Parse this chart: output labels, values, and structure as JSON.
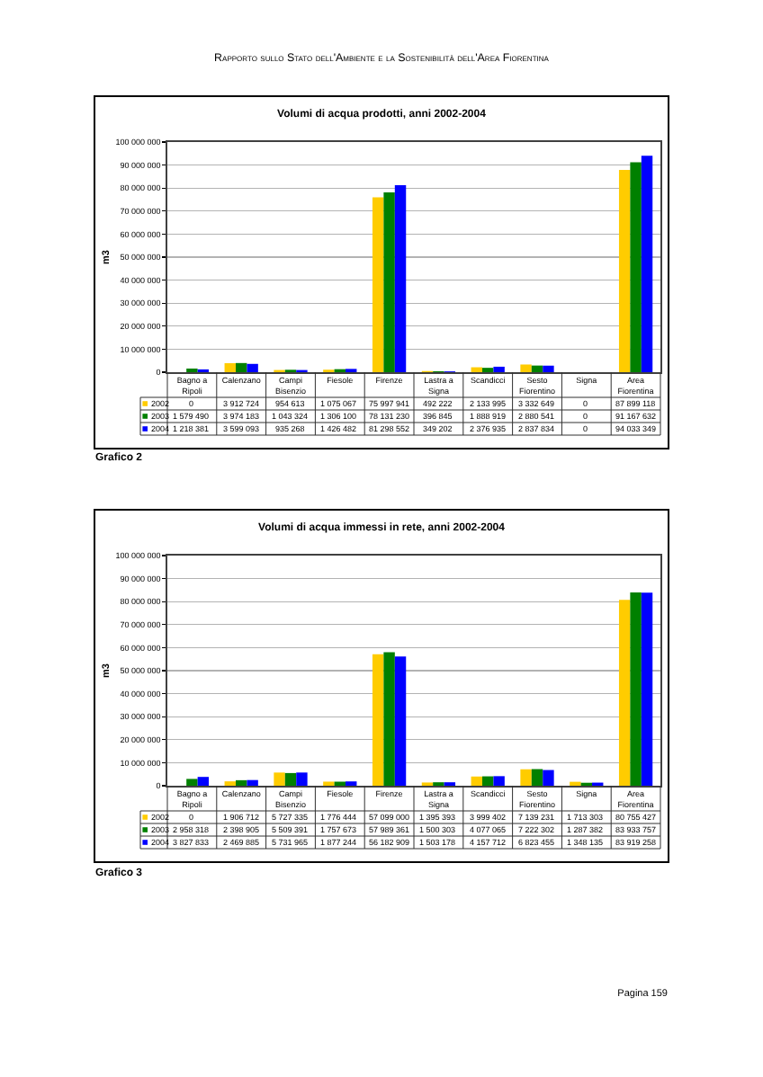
{
  "chart_data": [
    {
      "type": "bar",
      "title": "Volumi di acqua prodotti, anni 2002-2004",
      "ylabel": "m3",
      "annotations": [
        "Rapporto sullo Stato dell'Ambiente e la Sostenibilità dell'Area Fiorentina",
        "Grafico 2"
      ],
      "categories": [
        "Bagno a Ripoli",
        "Calenzano",
        "Campi Bisenzio",
        "Fiesole",
        "Firenze",
        "Lastra a Signa",
        "Scandicci",
        "Sesto Fiorentino",
        "Signa",
        "Area Fiorentina"
      ],
      "series": [
        {
          "name": "2002",
          "color": "#ffcc00",
          "values": [
            0,
            3912724,
            954613,
            1075067,
            75997941,
            492222,
            2133995,
            3332649,
            0,
            87899118
          ],
          "value_labels": [
            "0",
            "3 912 724",
            "954 613",
            "1 075 067",
            "75 997 941",
            "492 222",
            "2 133 995",
            "3 332 649",
            "0",
            "87 899 118"
          ]
        },
        {
          "name": "2003",
          "color": "#008000",
          "values": [
            1579490,
            3974183,
            1043324,
            1306100,
            78131230,
            396845,
            1888919,
            2880541,
            0,
            91167632
          ],
          "value_labels": [
            "1 579 490",
            "3 974 183",
            "1 043 324",
            "1 306 100",
            "78 131 230",
            "396 845",
            "1 888 919",
            "2 880 541",
            "0",
            "91 167 632"
          ]
        },
        {
          "name": "2004",
          "color": "#0000ff",
          "values": [
            1218381,
            3599093,
            935268,
            1426482,
            81298552,
            349202,
            2376935,
            2837834,
            0,
            94033349
          ],
          "value_labels": [
            "1 218 381",
            "3 599 093",
            "935 268",
            "1 426 482",
            "81 298 552",
            "349 202",
            "2 376 935",
            "2 837 834",
            "0",
            "94 033 349"
          ]
        }
      ],
      "ylim": [
        0,
        100000000
      ],
      "yticks": [
        0,
        {
          "value": 10000000,
          "label": "10 000 000"
        },
        {
          "value": 20000000,
          "label": "20 000 000"
        },
        {
          "value": 30000000,
          "label": "30 000 000"
        },
        {
          "value": 40000000,
          "label": "40 000 000"
        },
        {
          "value": 50000000,
          "label": "50 000 000"
        },
        {
          "value": 60000000,
          "label": "60 000 000"
        },
        {
          "value": 70000000,
          "label": "70 000 000"
        },
        {
          "value": 80000000,
          "label": "80 000 000"
        },
        {
          "value": 90000000,
          "label": "90 000 000"
        },
        {
          "value": 100000000,
          "label": "100 000 000"
        }
      ],
      "grid": "y",
      "legend": "bottom left"
    },
    {
      "type": "bar",
      "title": "Volumi di acqua immessi in rete, anni 2002-2004",
      "ylabel": "m3",
      "annotations": [
        "Grafico 3",
        "Pagina 159"
      ],
      "categories": [
        "Bagno a Ripoli",
        "Calenzano",
        "Campi Bisenzio",
        "Fiesole",
        "Firenze",
        "Lastra a Signa",
        "Scandicci",
        "Sesto Fiorentino",
        "Signa",
        "Area Fiorentina"
      ],
      "series": [
        {
          "name": "2002",
          "color": "#ffcc00",
          "values": [
            0,
            1906712,
            5727335,
            1776444,
            57099000,
            1395393,
            3999402,
            7139231,
            1713303,
            80755427
          ],
          "value_labels": [
            "0",
            "1 906 712",
            "5 727 335",
            "1 776 444",
            "57 099 000",
            "1 395 393",
            "3 999 402",
            "7 139 231",
            "1 713 303",
            "80 755 427"
          ]
        },
        {
          "name": "2003",
          "color": "#008000",
          "values": [
            2958318,
            2398905,
            5509391,
            1757673,
            57989361,
            1500303,
            4077065,
            7222302,
            1287382,
            83933757
          ],
          "value_labels": [
            "2 958 318",
            "2 398 905",
            "5 509 391",
            "1 757 673",
            "57 989 361",
            "1 500 303",
            "4 077 065",
            "7 222 302",
            "1 287 382",
            "83 933 757"
          ]
        },
        {
          "name": "2004",
          "color": "#0000ff",
          "values": [
            3827833,
            2469885,
            5731965,
            1877244,
            56182909,
            1503178,
            4157712,
            6823455,
            1348135,
            83919258
          ],
          "value_labels": [
            "3 827 833",
            "2 469 885",
            "5 731 965",
            "1 877 244",
            "56 182 909",
            "1 503 178",
            "4 157 712",
            "6 823 455",
            "1 348 135",
            "83 919 258"
          ]
        }
      ],
      "ylim": [
        0,
        100000000
      ],
      "yticks": [
        0,
        {
          "value": 10000000,
          "label": "10 000 000"
        },
        {
          "value": 20000000,
          "label": "20 000 000"
        },
        {
          "value": 30000000,
          "label": "30 000 000"
        },
        {
          "value": 40000000,
          "label": "40 000 000"
        },
        {
          "value": 50000000,
          "label": "50 000 000"
        },
        {
          "value": 60000000,
          "label": "60 000 000"
        },
        {
          "value": 70000000,
          "label": "70 000 000"
        },
        {
          "value": 80000000,
          "label": "80 000 000"
        },
        {
          "value": 90000000,
          "label": "90 000 000"
        },
        {
          "value": 100000000,
          "label": "100 000 000"
        }
      ],
      "grid": "y",
      "legend": "bottom left"
    }
  ]
}
